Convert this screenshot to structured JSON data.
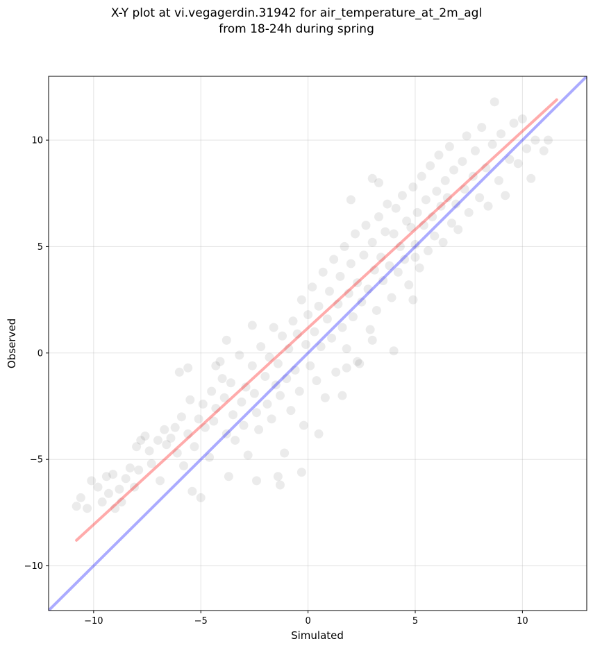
{
  "chart_data": {
    "type": "scatter",
    "title": "X-Y plot at vi.vegagerdin.31942 for air_temperature_at_2m_agl",
    "subtitle": "from 18-24h during spring",
    "xlabel": "Simulated",
    "ylabel": "Observed",
    "xlim": [
      -12.1,
      13.0
    ],
    "ylim": [
      -12.1,
      13.0
    ],
    "xticks": [
      -10,
      -5,
      0,
      5,
      10
    ],
    "yticks": [
      -10,
      -5,
      0,
      5,
      10
    ],
    "xtick_labels": [
      "−10",
      "−5",
      "0",
      "5",
      "10"
    ],
    "ytick_labels": [
      "−10",
      "−5",
      "0",
      "5",
      "10"
    ],
    "grid": true,
    "point_color": "#000000",
    "point_alpha": 0.08,
    "regression_line": {
      "color": "#ff0000",
      "x": [
        -10.8,
        11.6
      ],
      "y": [
        -8.8,
        11.9
      ]
    },
    "identity_line": {
      "color": "#0000ff",
      "x": [
        -12.1,
        13.0
      ],
      "y": [
        -12.1,
        13.0
      ]
    },
    "points": [
      [
        -10.8,
        -7.2
      ],
      [
        -10.6,
        -6.8
      ],
      [
        -10.3,
        -7.3
      ],
      [
        -10.1,
        -6.0
      ],
      [
        -9.8,
        -6.3
      ],
      [
        -9.6,
        -7.0
      ],
      [
        -9.4,
        -5.8
      ],
      [
        -9.3,
        -6.6
      ],
      [
        -9.0,
        -7.3
      ],
      [
        -9.1,
        -5.7
      ],
      [
        -8.8,
        -6.4
      ],
      [
        -8.7,
        -7.0
      ],
      [
        -8.5,
        -5.9
      ],
      [
        -8.3,
        -5.4
      ],
      [
        -8.1,
        -6.3
      ],
      [
        -8.0,
        -4.4
      ],
      [
        -7.8,
        -4.1
      ],
      [
        -7.9,
        -5.5
      ],
      [
        -7.6,
        -3.9
      ],
      [
        -7.4,
        -4.6
      ],
      [
        -7.3,
        -5.2
      ],
      [
        -7.0,
        -4.1
      ],
      [
        -6.9,
        -6.0
      ],
      [
        -6.7,
        -3.6
      ],
      [
        -6.6,
        -4.3
      ],
      [
        -6.4,
        -4.0
      ],
      [
        -6.2,
        -3.5
      ],
      [
        -6.1,
        -4.7
      ],
      [
        -5.9,
        -3.0
      ],
      [
        -5.8,
        -5.3
      ],
      [
        -5.6,
        -3.8
      ],
      [
        -5.5,
        -2.2
      ],
      [
        -5.4,
        -6.5
      ],
      [
        -5.3,
        -4.4
      ],
      [
        -5.1,
        -3.1
      ],
      [
        -5.0,
        -6.8
      ],
      [
        -4.9,
        -2.4
      ],
      [
        -4.8,
        -3.5
      ],
      [
        -4.6,
        -4.9
      ],
      [
        -4.5,
        -1.8
      ],
      [
        -4.4,
        -3.2
      ],
      [
        -4.3,
        -2.6
      ],
      [
        -4.1,
        -0.4
      ],
      [
        -4.0,
        -1.2
      ],
      [
        -3.9,
        -2.1
      ],
      [
        -3.8,
        -3.8
      ],
      [
        -3.7,
        -5.8
      ],
      [
        -3.6,
        -1.4
      ],
      [
        -3.5,
        -2.9
      ],
      [
        -3.4,
        -4.1
      ],
      [
        -3.2,
        -0.1
      ],
      [
        -3.1,
        -2.3
      ],
      [
        -3.0,
        -3.4
      ],
      [
        -2.9,
        -1.6
      ],
      [
        -2.8,
        -4.8
      ],
      [
        -2.6,
        -0.6
      ],
      [
        -2.5,
        -1.9
      ],
      [
        -2.4,
        -2.8
      ],
      [
        -2.3,
        -3.6
      ],
      [
        -2.2,
        0.3
      ],
      [
        -2.0,
        -1.1
      ],
      [
        -1.9,
        -2.4
      ],
      [
        -1.8,
        -0.2
      ],
      [
        -1.7,
        -3.1
      ],
      [
        -1.6,
        1.2
      ],
      [
        -1.5,
        -1.5
      ],
      [
        -1.4,
        -0.5
      ],
      [
        -1.3,
        -2.0
      ],
      [
        -1.2,
        0.8
      ],
      [
        -1.1,
        -4.7
      ],
      [
        -1.0,
        -1.2
      ],
      [
        -0.9,
        0.2
      ],
      [
        -0.8,
        -2.7
      ],
      [
        -0.7,
        1.5
      ],
      [
        -0.6,
        -0.8
      ],
      [
        -0.5,
        0.9
      ],
      [
        -0.4,
        -1.8
      ],
      [
        -0.3,
        2.5
      ],
      [
        -0.2,
        -3.4
      ],
      [
        -0.1,
        0.4
      ],
      [
        0.0,
        1.8
      ],
      [
        0.1,
        -0.6
      ],
      [
        0.2,
        3.1
      ],
      [
        0.3,
        1.0
      ],
      [
        0.4,
        -1.3
      ],
      [
        0.5,
        2.2
      ],
      [
        0.6,
        0.3
      ],
      [
        0.7,
        3.8
      ],
      [
        0.8,
        -2.1
      ],
      [
        0.9,
        1.6
      ],
      [
        1.0,
        2.9
      ],
      [
        1.1,
        0.7
      ],
      [
        1.2,
        4.4
      ],
      [
        1.3,
        -0.9
      ],
      [
        1.4,
        2.3
      ],
      [
        1.5,
        3.6
      ],
      [
        1.6,
        1.2
      ],
      [
        1.7,
        5.0
      ],
      [
        1.8,
        0.2
      ],
      [
        1.9,
        2.8
      ],
      [
        2.0,
        4.2
      ],
      [
        2.1,
        1.7
      ],
      [
        2.2,
        5.6
      ],
      [
        2.3,
        3.3
      ],
      [
        2.4,
        -0.5
      ],
      [
        2.5,
        2.4
      ],
      [
        2.6,
        4.6
      ],
      [
        2.7,
        6.0
      ],
      [
        2.8,
        3.0
      ],
      [
        2.9,
        1.1
      ],
      [
        3.0,
        5.2
      ],
      [
        3.1,
        3.9
      ],
      [
        3.2,
        2.0
      ],
      [
        3.3,
        6.4
      ],
      [
        3.4,
        4.5
      ],
      [
        3.5,
        3.4
      ],
      [
        3.6,
        5.7
      ],
      [
        3.7,
        7.0
      ],
      [
        3.8,
        4.1
      ],
      [
        3.9,
        2.6
      ],
      [
        4.0,
        5.6
      ],
      [
        4.1,
        6.8
      ],
      [
        4.2,
        3.8
      ],
      [
        4.3,
        5.0
      ],
      [
        4.4,
        7.4
      ],
      [
        4.5,
        4.4
      ],
      [
        4.6,
        6.2
      ],
      [
        4.7,
        3.2
      ],
      [
        4.8,
        5.9
      ],
      [
        4.9,
        7.8
      ],
      [
        5.0,
        5.1
      ],
      [
        5.1,
        6.6
      ],
      [
        5.2,
        4.0
      ],
      [
        5.3,
        8.3
      ],
      [
        5.4,
        6.0
      ],
      [
        5.5,
        7.2
      ],
      [
        5.6,
        4.8
      ],
      [
        5.7,
        8.8
      ],
      [
        5.8,
        6.4
      ],
      [
        5.9,
        5.5
      ],
      [
        6.0,
        7.6
      ],
      [
        6.1,
        9.3
      ],
      [
        6.2,
        6.9
      ],
      [
        6.3,
        5.2
      ],
      [
        6.4,
        8.1
      ],
      [
        6.5,
        7.3
      ],
      [
        6.6,
        9.7
      ],
      [
        6.7,
        6.1
      ],
      [
        6.8,
        8.6
      ],
      [
        6.9,
        7.0
      ],
      [
        7.0,
        5.8
      ],
      [
        7.2,
        9.0
      ],
      [
        7.3,
        7.7
      ],
      [
        7.4,
        10.2
      ],
      [
        7.5,
        6.6
      ],
      [
        7.7,
        8.3
      ],
      [
        7.8,
        9.5
      ],
      [
        8.0,
        7.3
      ],
      [
        8.1,
        10.6
      ],
      [
        8.3,
        8.7
      ],
      [
        8.4,
        6.9
      ],
      [
        8.6,
        9.8
      ],
      [
        8.7,
        11.8
      ],
      [
        8.9,
        8.1
      ],
      [
        9.0,
        10.3
      ],
      [
        9.2,
        7.4
      ],
      [
        9.4,
        9.1
      ],
      [
        9.6,
        10.8
      ],
      [
        9.8,
        8.9
      ],
      [
        10.0,
        11.0
      ],
      [
        10.2,
        9.6
      ],
      [
        10.4,
        8.2
      ],
      [
        10.6,
        10.0
      ],
      [
        11.0,
        9.5
      ],
      [
        11.2,
        10.0
      ],
      [
        -6.0,
        -0.9
      ],
      [
        -5.6,
        -0.7
      ],
      [
        -4.3,
        -0.6
      ],
      [
        -3.8,
        0.6
      ],
      [
        -2.6,
        1.3
      ],
      [
        1.8,
        -0.7
      ],
      [
        2.3,
        -0.4
      ],
      [
        1.6,
        -2.0
      ],
      [
        3.0,
        0.6
      ],
      [
        4.0,
        0.1
      ],
      [
        -1.3,
        -6.2
      ],
      [
        -1.4,
        -5.8
      ],
      [
        -0.3,
        -5.6
      ],
      [
        0.5,
        -3.8
      ],
      [
        -2.4,
        -6.0
      ],
      [
        3.3,
        8.0
      ],
      [
        3.0,
        8.2
      ],
      [
        2.0,
        7.2
      ],
      [
        4.9,
        2.5
      ],
      [
        5.0,
        4.5
      ]
    ]
  }
}
